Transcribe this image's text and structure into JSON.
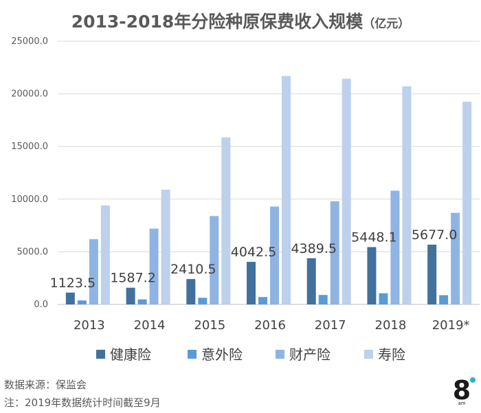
{
  "header": {
    "title": "2013-2018年分险种原保费收入规模",
    "unit": "（亿元）"
  },
  "chart_data": {
    "type": "bar",
    "categories": [
      "2013",
      "2014",
      "2015",
      "2016",
      "2017",
      "2018",
      "2019*"
    ],
    "series": [
      {
        "name": "健康险",
        "color": "#41719c",
        "values": [
          1123.5,
          1587.2,
          2410.5,
          4042.5,
          4389.5,
          5448.1,
          5677.0
        ]
      },
      {
        "name": "意外险",
        "color": "#5b9bd5",
        "values": [
          380,
          480,
          630,
          700,
          900,
          1060,
          880
        ]
      },
      {
        "name": "财产险",
        "color": "#8fb4e3",
        "values": [
          6200,
          7200,
          8400,
          9300,
          9800,
          10800,
          8700
        ]
      },
      {
        "name": "寿险",
        "color": "#bdd0ec",
        "values": [
          9400,
          10900,
          15860,
          21700,
          21440,
          20720,
          19250
        ]
      }
    ],
    "data_labels": [
      "1123.5",
      "1587.2",
      "2410.5",
      "4042.5",
      "4389.5",
      "5448.1",
      "5677.0"
    ],
    "yticks": [
      "0.0",
      "5000.0",
      "10000.0",
      "15000.0",
      "20000.0",
      "25000.0"
    ],
    "ylim": [
      0,
      25000
    ],
    "grid": true,
    "legend": "bottom"
  },
  "footer": {
    "source": "数据来源：保监会",
    "note": "注：2019年数据统计时间截至9月"
  },
  "logo": {
    "text": "8",
    "subtext": "am"
  }
}
